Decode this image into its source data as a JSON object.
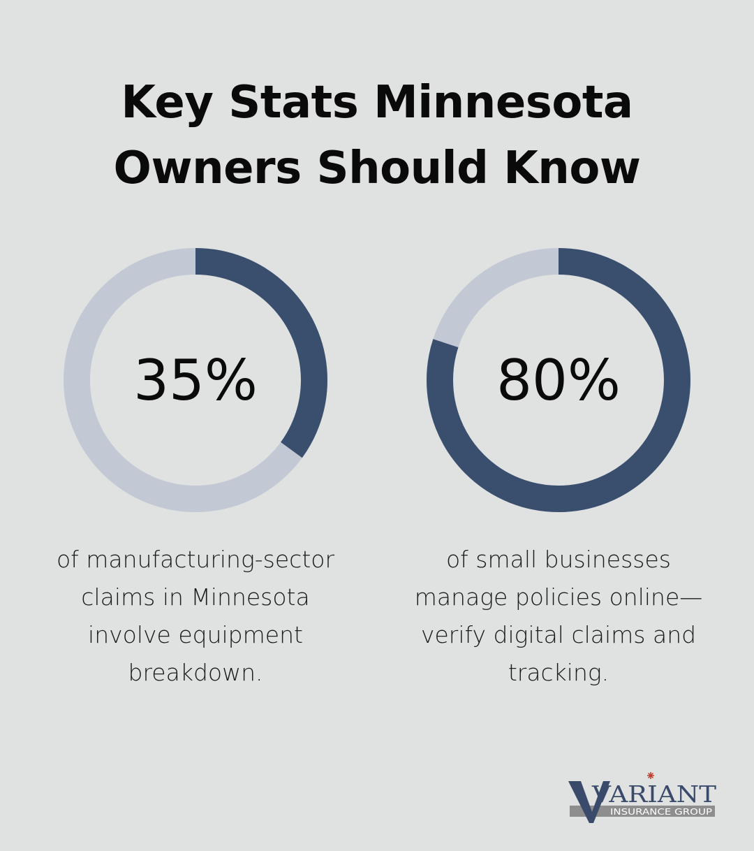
{
  "title": {
    "line1": "Key Stats Minnesota",
    "line2": "Owners Should Know"
  },
  "colors": {
    "background": "#e0e2e1",
    "ring_track": "#c3c9d4",
    "ring_fill": "#3a4f6e",
    "logo_navy": "#3a4a6b",
    "logo_band": "#8e8e8e",
    "logo_star": "#c0392b"
  },
  "chart_data": [
    {
      "type": "pie",
      "value": 35,
      "max": 100,
      "label": "35%",
      "caption": [
        "of manufacturing-sector",
        "claims in Minnesota",
        "involve equipment",
        "breakdown."
      ]
    },
    {
      "type": "pie",
      "value": 80,
      "max": 100,
      "label": "80%",
      "caption": [
        "of small businesses",
        "manage policies online—",
        "verify digital claims and",
        "tracking."
      ]
    }
  ],
  "logo": {
    "wordmark": "VARIANT",
    "tagline": "INSURANCE GROUP"
  }
}
